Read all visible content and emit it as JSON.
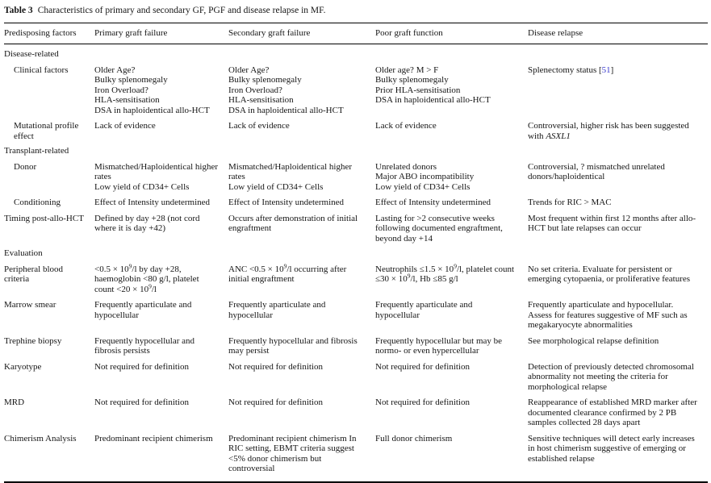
{
  "colors": {
    "citation_link": "#3b3bcd"
  },
  "title": {
    "label": "Table 3",
    "text": "Characteristics of primary and secondary GF, PGF and disease relapse in MF."
  },
  "table": {
    "columns": [
      "Predisposing factors",
      "Primary graft failure",
      "Secondary graft failure",
      "Poor graft function",
      "Disease relapse"
    ],
    "rows": [
      {
        "type": "section",
        "label": "Disease-related"
      },
      {
        "type": "data",
        "indent": true,
        "label": "Clinical factors",
        "cells": [
          [
            "Older Age?",
            "Bulky splenomegaly",
            "Iron Overload?",
            "HLA-sensitisation",
            "DSA in haploidentical allo-HCT"
          ],
          [
            "Older Age?",
            "Bulky splenomegaly",
            "Iron Overload?",
            "HLA-sensitisation",
            "DSA in haploidentical allo-HCT"
          ],
          [
            "Older age? M > F",
            "Bulky splenomegaly",
            "Prior HLA-sensitisation",
            "DSA in haploidentical allo-HCT"
          ],
          [
            "Splenectomy status [~51~]"
          ]
        ]
      },
      {
        "type": "data",
        "indent": true,
        "label": "Mutational profile effect",
        "cells": [
          [
            "Lack of evidence"
          ],
          [
            "Lack of evidence"
          ],
          [
            "Lack of evidence"
          ],
          [
            "Controversial, higher risk has been suggested with _ASXL1_"
          ]
        ]
      },
      {
        "type": "section",
        "label": "Transplant-related"
      },
      {
        "type": "data",
        "indent": true,
        "label": "Donor",
        "cells": [
          [
            "Mismatched/Haploidentical higher rates",
            "Low yield of CD34+ Cells"
          ],
          [
            "Mismatched/Haploidentical higher rates",
            "Low yield of CD34+ Cells"
          ],
          [
            "Unrelated donors",
            "Major ABO incompatibility",
            "Low yield of CD34+ Cells"
          ],
          [
            "Controversial, ? mismatched unrelated donors/haploidentical"
          ]
        ]
      },
      {
        "type": "data",
        "indent": true,
        "label": "Conditioning",
        "cells": [
          [
            "Effect of Intensity undetermined"
          ],
          [
            "Effect of Intensity undetermined"
          ],
          [
            "Effect of Intensity undetermined"
          ],
          [
            "Trends for RIC > MAC"
          ]
        ]
      },
      {
        "type": "data",
        "indent": false,
        "label": "Timing post-allo-HCT",
        "cells": [
          [
            "Defined by day +28 (not cord where it is day +42)"
          ],
          [
            "Occurs after demonstration of initial engraftment"
          ],
          [
            "Lasting for >2 consecutive weeks following documented engraftment, beyond day +14"
          ],
          [
            "Most frequent within first 12 months after allo-HCT but late relapses can occur"
          ]
        ]
      },
      {
        "type": "section",
        "label": "Evaluation"
      },
      {
        "type": "data",
        "indent": false,
        "label": "Peripheral blood criteria",
        "cells": [
          [
            "<0.5 × 10^9^/l by day +28, haemoglobin <80 g/l, platelet count <20 × 10^9^/l"
          ],
          [
            "ANC <0.5 × 10^9^/l occurring after initial engraftment"
          ],
          [
            "Neutrophils ≤1.5 × 10^9^/l, platelet count ≤30 × 10^9^/l, Hb ≤85 g/l"
          ],
          [
            "No set criteria. Evaluate for persistent or emerging cytopaenia, or proliferative features"
          ]
        ]
      },
      {
        "type": "data",
        "indent": false,
        "label": "Marrow smear",
        "cells": [
          [
            "Frequently aparticulate and hypocellular"
          ],
          [
            "Frequently aparticulate and hypocellular"
          ],
          [
            "Frequently aparticulate and hypocellular"
          ],
          [
            "Frequently aparticulate and hypocellular. Assess for features suggestive of MF such as megakaryocyte abnormalities"
          ]
        ]
      },
      {
        "type": "data",
        "indent": false,
        "label": "Trephine biopsy",
        "cells": [
          [
            "Frequently hypocellular and fibrosis persists"
          ],
          [
            "Frequently hypocellular and fibrosis may persist"
          ],
          [
            "Frequently hypocellular but may be normo- or even hypercellular"
          ],
          [
            "See morphological relapse definition"
          ]
        ]
      },
      {
        "type": "data",
        "indent": false,
        "label": "Karyotype",
        "cells": [
          [
            "Not required for definition"
          ],
          [
            "Not required for definition"
          ],
          [
            "Not required for definition"
          ],
          [
            "Detection of previously detected chromosomal abnormality not meeting the criteria for morphological relapse"
          ]
        ]
      },
      {
        "type": "data",
        "indent": false,
        "label": "MRD",
        "cells": [
          [
            "Not required for definition"
          ],
          [
            "Not required for definition"
          ],
          [
            "Not required for definition"
          ],
          [
            "Reappearance of established MRD marker after documented clearance confirmed by 2 PB samples collected 28 days apart"
          ]
        ]
      },
      {
        "type": "data",
        "indent": false,
        "label": "Chimerism Analysis",
        "cells": [
          [
            "Predominant recipient chimerism"
          ],
          [
            "Predominant recipient chimerism In RIC setting, EBMT criteria suggest <5% donor chimerism but controversial"
          ],
          [
            "Full donor chimerism"
          ],
          [
            "Sensitive techniques will detect early increases in host chimerism suggestive of emerging or established relapse"
          ]
        ]
      }
    ]
  }
}
